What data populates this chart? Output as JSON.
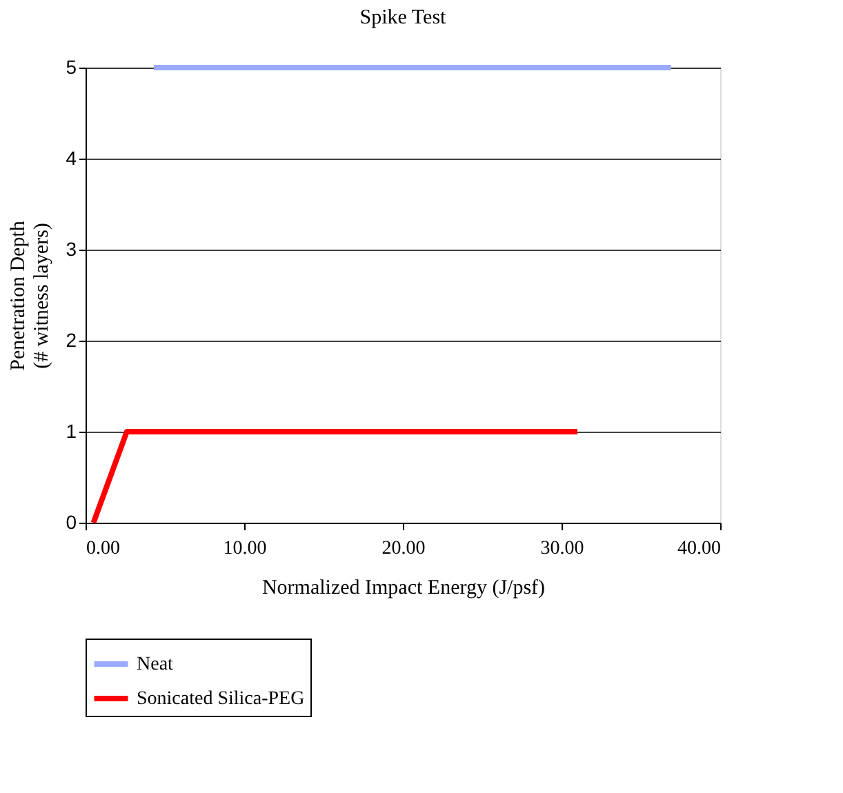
{
  "chart_data": {
    "type": "line",
    "title": "Spike Test",
    "xlabel": "Normalized Impact Energy (J/psf)",
    "ylabel": "Penetration Depth\n(# witness layers)",
    "series": [
      {
        "name": "Neat",
        "color": "#99aaff",
        "x": [
          4.3,
          36.9
        ],
        "values": [
          5,
          5
        ]
      },
      {
        "name": "Sonicated Silica-PEG",
        "color": "#ff0000",
        "x": [
          0.5,
          2.6,
          30,
          31
        ],
        "values": [
          0,
          1,
          1,
          1
        ]
      }
    ],
    "xlim": [
      0,
      40
    ],
    "xticks": [
      {
        "value": 0,
        "label": "0.00"
      },
      {
        "value": 10,
        "label": "10.00"
      },
      {
        "value": 20,
        "label": "20.00"
      },
      {
        "value": 30,
        "label": "30.00"
      },
      {
        "value": 40,
        "label": "40.00"
      }
    ],
    "ylim": [
      0,
      5
    ],
    "yticks": [
      0,
      1,
      2,
      3,
      4,
      5
    ],
    "grid": "y",
    "legend": "bottom",
    "marker": "none",
    "line_style": "solid"
  }
}
